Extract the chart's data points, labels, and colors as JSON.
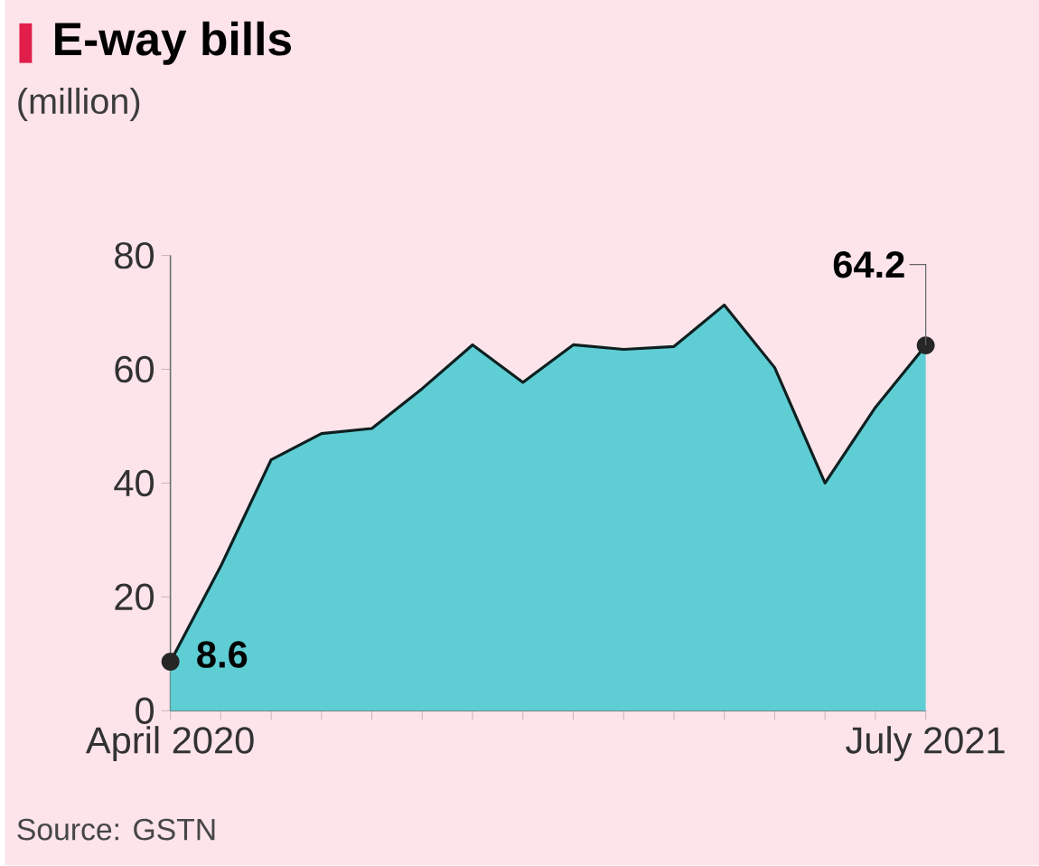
{
  "chart_data": {
    "type": "area",
    "title": "E-way bills",
    "ylabel": "(million)",
    "categories": [
      "April 2020",
      null,
      null,
      null,
      null,
      null,
      null,
      null,
      null,
      null,
      null,
      null,
      null,
      null,
      null,
      "July 2021"
    ],
    "series": [
      {
        "color": "#5fcdd4",
        "values": [
          8.6,
          25.4,
          44.1,
          48.7,
          49.6,
          56.6,
          64.3,
          57.7,
          64.3,
          63.5,
          64.0,
          71.3,
          60.3,
          40.0,
          53.3,
          64.2
        ]
      }
    ],
    "ylim": [
      0,
      80
    ],
    "yticks": [
      0,
      20,
      40,
      60,
      80
    ],
    "annotations": [
      {
        "text": "8.6",
        "x": "April 2020",
        "y": 8.6
      },
      {
        "text": "64.2",
        "x": "July 2021",
        "y": 64.2
      },
      "Source: GSTN"
    ]
  }
}
